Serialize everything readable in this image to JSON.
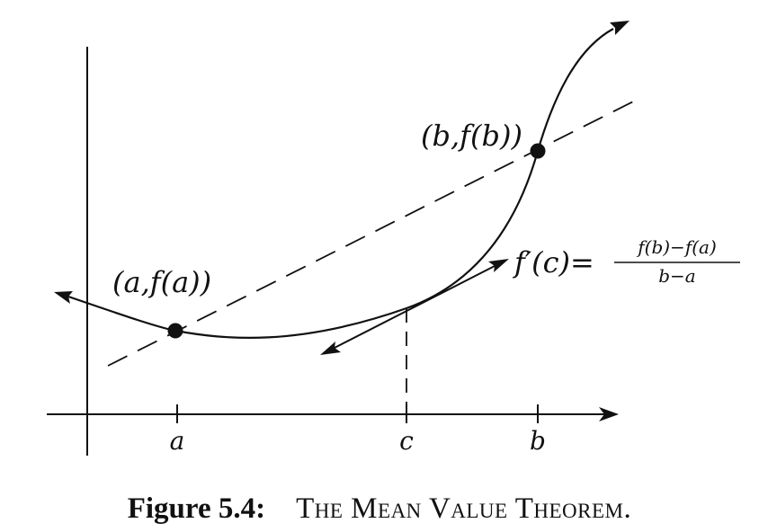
{
  "labels": {
    "point_a": "(a,f(a))",
    "point_b": "(b,f(b))",
    "tick_a": "a",
    "tick_c": "c",
    "tick_b": "b",
    "derivative_lhs": "f′(c)=",
    "fraction_numerator": "f(b)−f(a)",
    "fraction_denominator": "b−a"
  },
  "caption": {
    "label": "Figure 5.4:",
    "title": "The Mean Value Theorem."
  },
  "colors": {
    "ink": "#111111",
    "background": "#ffffff"
  }
}
